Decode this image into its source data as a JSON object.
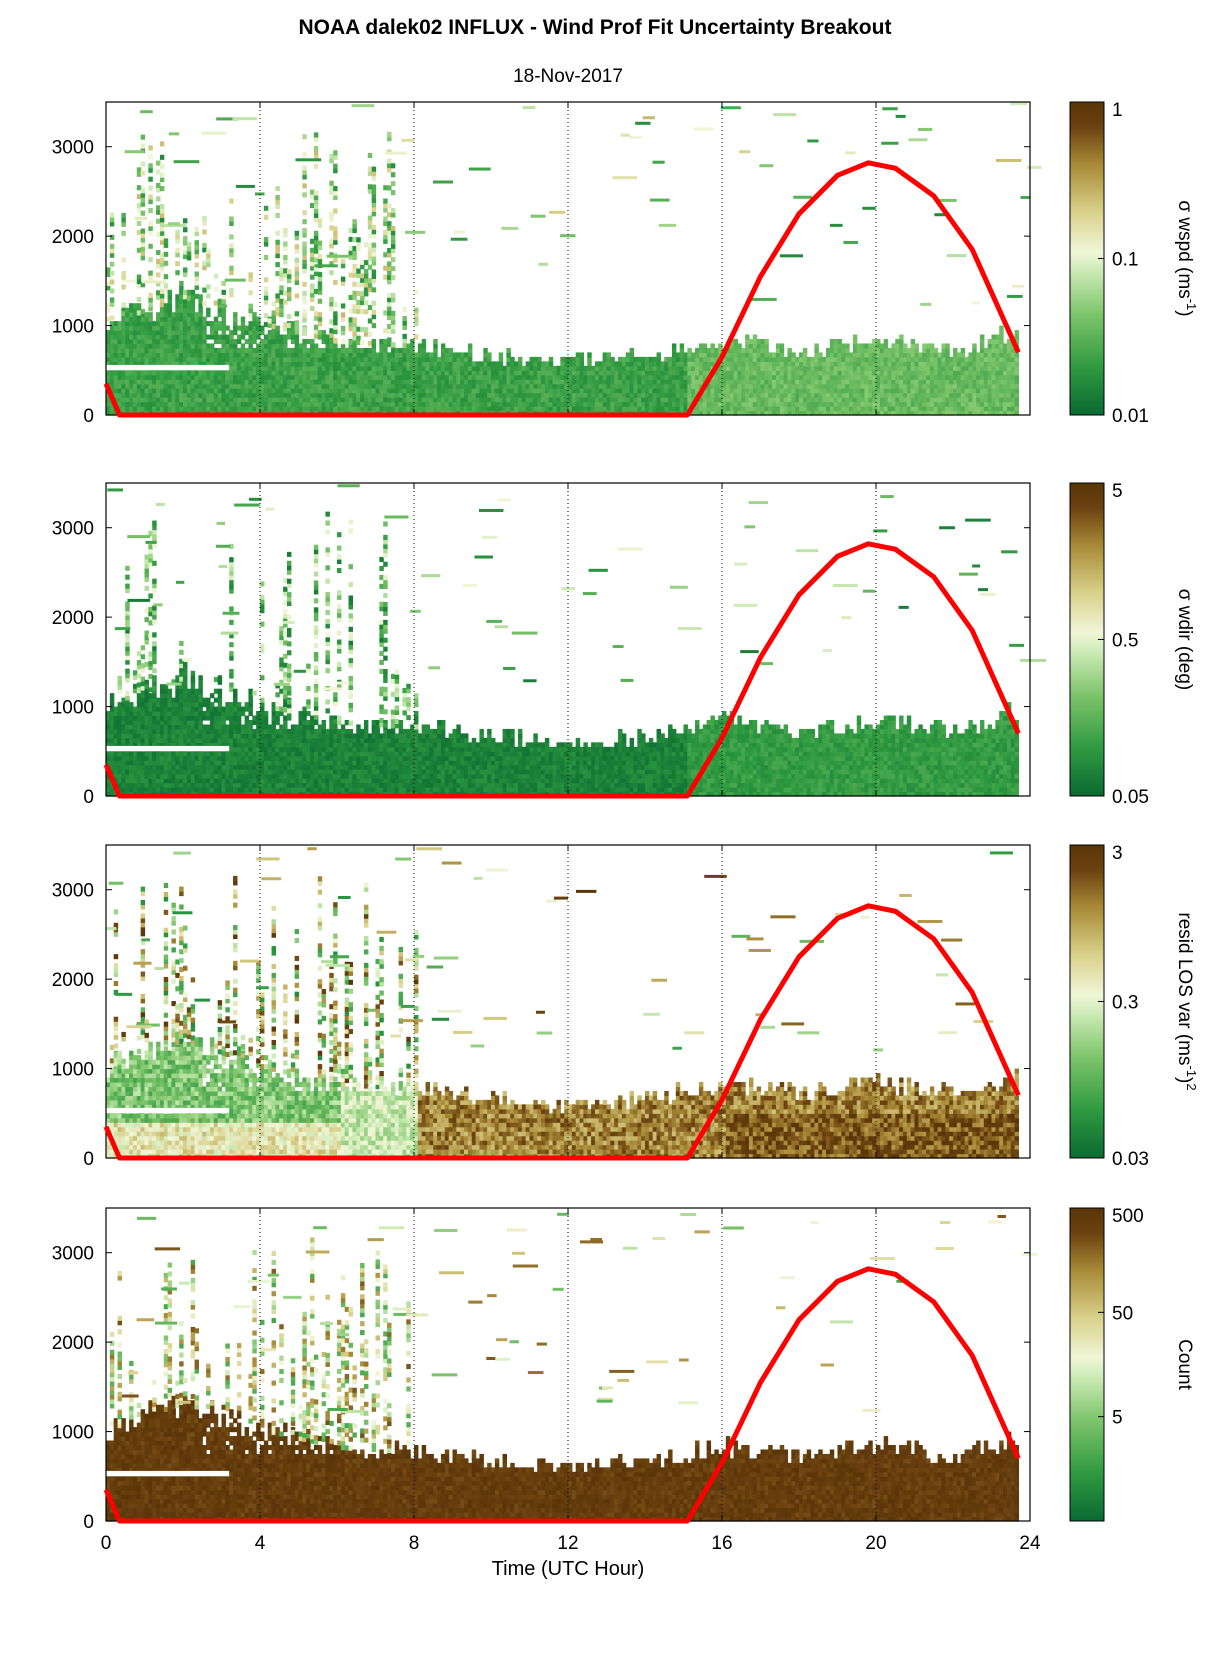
{
  "figure": {
    "title": "NOAA dalek02 INFLUX - Wind Prof Fit Uncertainty Breakout",
    "subtitle": "18-Nov-2017",
    "xlabel": "Time (UTC Hour)"
  },
  "colors": {
    "sun_curve": "#ff0000",
    "colormap": [
      "#0b6a32",
      "#2e9940",
      "#7cc46a",
      "#c6e8b0",
      "#f0f6d8",
      "#d9d08a",
      "#a88a36",
      "#6b4210",
      "#5a3508"
    ]
  },
  "chart_data": [
    {
      "type": "heatmap",
      "panel": "sigma-wspd",
      "xlim": [
        0,
        24
      ],
      "ylim": [
        0,
        3500
      ],
      "xticks": [
        0,
        4,
        8,
        12,
        16,
        20,
        24
      ],
      "yticks": [
        0,
        1000,
        2000,
        3000
      ],
      "grid": "vertical dotted lines at 4-hour intervals",
      "colorbar": {
        "label": "σ wspd (ms-1)",
        "label_main": "σ wspd (ms",
        "label_sup": "-1",
        "label_end": ")",
        "scale": "log",
        "range": [
          0.01,
          1
        ],
        "ticks": [
          "0.01",
          "0.1",
          "1"
        ]
      },
      "boundary_layer_top_m": [
        [
          0,
          1000
        ],
        [
          2,
          1300
        ],
        [
          4,
          1000
        ],
        [
          6,
          800
        ],
        [
          8,
          750
        ],
        [
          10,
          650
        ],
        [
          12,
          560
        ],
        [
          14,
          650
        ],
        [
          16,
          800
        ],
        [
          18,
          700
        ],
        [
          20,
          800
        ],
        [
          22,
          700
        ],
        [
          23.5,
          900
        ]
      ],
      "character": "mostly low values (green) below the mixed layer; scattered higher values aloft"
    },
    {
      "type": "heatmap",
      "panel": "sigma-wdir",
      "xlim": [
        0,
        24
      ],
      "ylim": [
        0,
        3500
      ],
      "xticks": [
        0,
        4,
        8,
        12,
        16,
        20,
        24
      ],
      "yticks": [
        0,
        1000,
        2000,
        3000
      ],
      "colorbar": {
        "label": "σ wdir (deg)",
        "scale": "log",
        "range": [
          0.05,
          5
        ],
        "ticks": [
          "0.05",
          "0.5",
          "5"
        ]
      },
      "character": "mostly dark green (low) in the mixed layer"
    },
    {
      "type": "heatmap",
      "panel": "resid-los-var",
      "xlim": [
        0,
        24
      ],
      "ylim": [
        0,
        3500
      ],
      "xticks": [
        0,
        4,
        8,
        12,
        16,
        20,
        24
      ],
      "yticks": [
        0,
        1000,
        2000,
        3000
      ],
      "colorbar": {
        "label": "resid LOS var (ms-1)2",
        "label_main": "resid LOS var (ms",
        "label_sup": "-1",
        "label_end": ")",
        "label_sup2": "2",
        "scale": "log",
        "range": [
          0.03,
          3
        ],
        "ticks": [
          "0.03",
          "0.3",
          "3"
        ]
      },
      "character": "green aloft early; brown (high) within the mixed layer from about 8 to 24 UTC"
    },
    {
      "type": "heatmap",
      "panel": "count",
      "xlim": [
        0,
        24
      ],
      "ylim": [
        0,
        3500
      ],
      "xticks": [
        0,
        4,
        8,
        12,
        16,
        20,
        24
      ],
      "xtick_labels": [
        "0",
        "4",
        "8",
        "12",
        "16",
        "20",
        "24"
      ],
      "yticks": [
        0,
        1000,
        2000,
        3000
      ],
      "colorbar": {
        "label": "Count",
        "scale": "log",
        "range": [
          0.5,
          500
        ],
        "ticks": [
          "5",
          "50",
          "500"
        ]
      },
      "character": "dark brown (high count) throughout the mixed layer"
    }
  ],
  "sun_elevation_curve": {
    "color": "red",
    "points": [
      [
        0,
        350
      ],
      [
        0.35,
        0
      ],
      [
        15.1,
        0
      ],
      [
        16,
        650
      ],
      [
        17,
        1550
      ],
      [
        18,
        2250
      ],
      [
        19,
        2680
      ],
      [
        19.8,
        2820
      ],
      [
        20.5,
        2760
      ],
      [
        21.5,
        2450
      ],
      [
        22.5,
        1850
      ],
      [
        23.7,
        700
      ]
    ]
  }
}
